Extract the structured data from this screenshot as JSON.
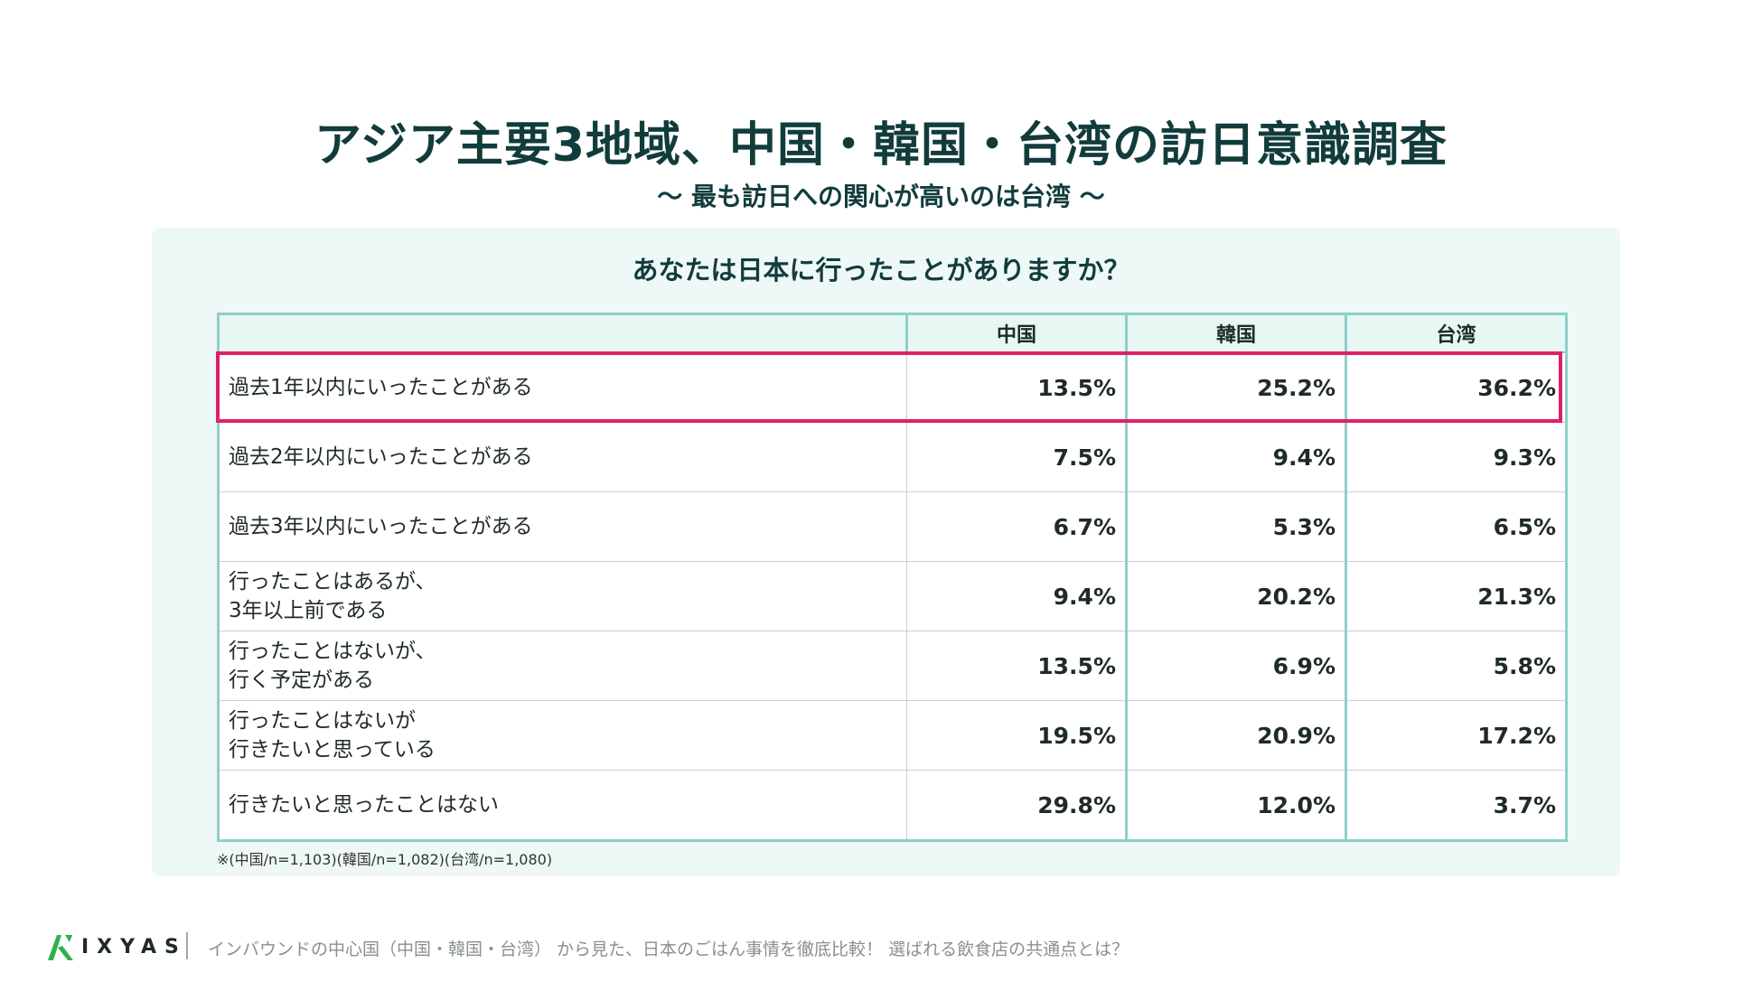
{
  "header": {
    "title": "アジア主要3地域、中国・韓国・台湾の訪日意識調査",
    "subtitle": "〜 最も訪日への関心が高いのは台湾 〜"
  },
  "question": "あなたは日本に行ったことがありますか？",
  "table": {
    "columns": [
      "中国",
      "韓国",
      "台湾"
    ],
    "rows": [
      {
        "label": [
          "過去1年以内にいったことがある"
        ],
        "values": [
          "13.5%",
          "25.2%",
          "36.2%"
        ],
        "highlighted": true
      },
      {
        "label": [
          "過去2年以内にいったことがある"
        ],
        "values": [
          "7.5%",
          "9.4%",
          "9.3%"
        ]
      },
      {
        "label": [
          "過去3年以内にいったことがある"
        ],
        "values": [
          "6.7%",
          "5.3%",
          "6.5%"
        ]
      },
      {
        "label": [
          "行ったことはあるが、",
          "3年以上前である"
        ],
        "values": [
          "9.4%",
          "20.2%",
          "21.3%"
        ]
      },
      {
        "label": [
          "行ったことはないが、",
          "行く予定がある"
        ],
        "values": [
          "13.5%",
          "6.9%",
          "5.8%"
        ]
      },
      {
        "label": [
          "行ったことはないが",
          "行きたいと思っている"
        ],
        "values": [
          "19.5%",
          "20.9%",
          "17.2%"
        ]
      },
      {
        "label": [
          "行きたいと思ったことはない"
        ],
        "values": [
          "29.8%",
          "12.0%",
          "3.7%"
        ]
      }
    ],
    "highlight_color": "#e0206a",
    "border_color": "#8fcfc8",
    "header_bg": "#e7f8f3"
  },
  "note": "※(中国/n=1,103)(韓国/n=1,082)(台湾/n=1,080)",
  "footer": {
    "logo_text": "IXYAS",
    "logo_icon": "ixyas-logo-icon",
    "caption": "インバウンドの中心国（中国・韓国・台湾） から見た、日本のごはん事情を徹底比較！ 選ばれる飲食店の共通点とは？"
  },
  "colors": {
    "title": "#123c3c",
    "panel_bg": "#eef8f6",
    "logo_green": "#2db24a"
  }
}
